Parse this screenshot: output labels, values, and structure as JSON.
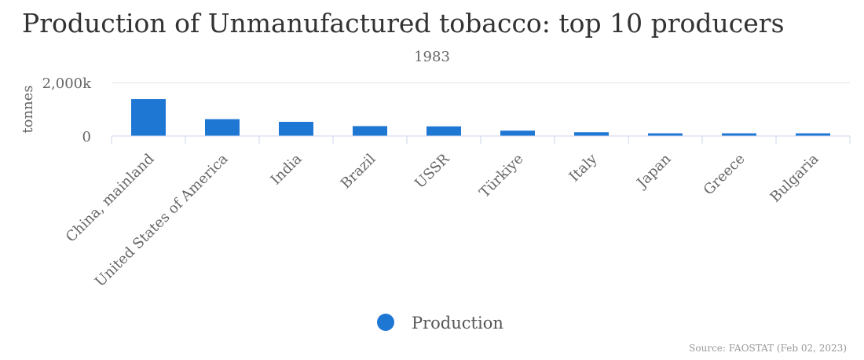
{
  "title": "Production of Unmanufactured tobacco: top 10 producers",
  "subtitle": "1983",
  "source": "Source: FAOSTAT (Feb 02, 2023)",
  "colors": {
    "bar": "#1f77d4",
    "grid": "#e6e6e6",
    "axis": "#ccd6eb",
    "text": "#666666"
  },
  "chart_data": {
    "type": "bar",
    "categories": [
      "China, mainland",
      "United States of America",
      "India",
      "Brazil",
      "USSR",
      "Türkiye",
      "Italy",
      "Japan",
      "Greece",
      "Bulgaria"
    ],
    "series": [
      {
        "name": "Production",
        "values": [
          1381000,
          630000,
          530000,
          370000,
          360000,
          200000,
          140000,
          100000,
          100000,
          100000
        ]
      }
    ],
    "ylabel": "tonnes",
    "ylim": [
      0,
      2000000
    ],
    "yticks": [
      {
        "value": 0,
        "label": "0"
      },
      {
        "value": 2000000,
        "label": "2,000k"
      }
    ],
    "grid": true,
    "legend": "bottom-center"
  }
}
